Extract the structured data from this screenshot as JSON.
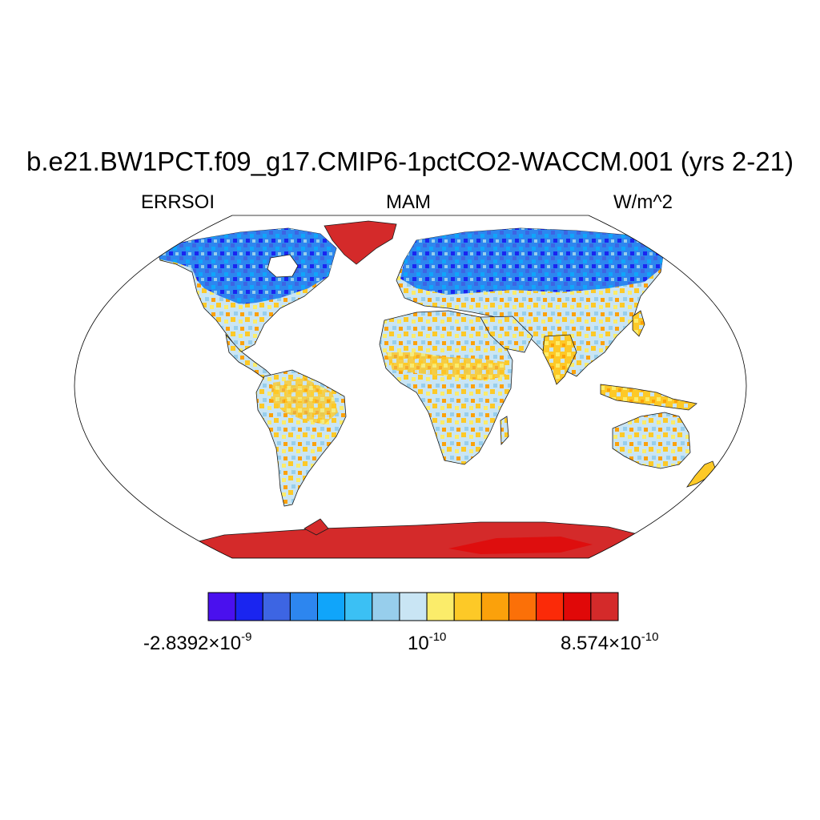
{
  "figure": {
    "title": "b.e21.BW1PCT.f09_g17.CMIP6-1pctCO2-WACCM.001 (yrs 2-21)",
    "left_label": "ERRSOI",
    "center_label": "MAM",
    "right_label": "W/m^2"
  },
  "map": {
    "projection": "Robinson",
    "variable": "ERRSOI",
    "season": "MAM",
    "units": "W/m^2"
  },
  "colorbar": {
    "colors": [
      "#4a10ee",
      "#1a25f0",
      "#3d65e3",
      "#2d86ef",
      "#10a5fa",
      "#3bc0f4",
      "#97ceec",
      "#c9e5f4",
      "#fbec6a",
      "#fdc927",
      "#fba10b",
      "#fb7008",
      "#fb2a08",
      "#e00808",
      "#d42a2a"
    ],
    "ticks": [
      {
        "mantissa": "-2.8392×10",
        "exp": "-9"
      },
      {
        "mantissa": "10",
        "exp": "-10"
      },
      {
        "mantissa": "8.574×10",
        "exp": "-10"
      }
    ]
  },
  "chart_data": {
    "type": "heatmap",
    "title": "b.e21.BW1PCT.f09_g17.CMIP6-1pctCO2-WACCM.001 (yrs 2-21)",
    "variable": "ERRSOI",
    "season": "MAM",
    "units": "W/m^2",
    "colorbar_labels": [
      "-2.8392×10^-9",
      "10^-10",
      "8.574×10^-10"
    ],
    "colorbar_min": -2.8392e-09,
    "colorbar_max": 8.574e-10,
    "n_colors": 15
  }
}
